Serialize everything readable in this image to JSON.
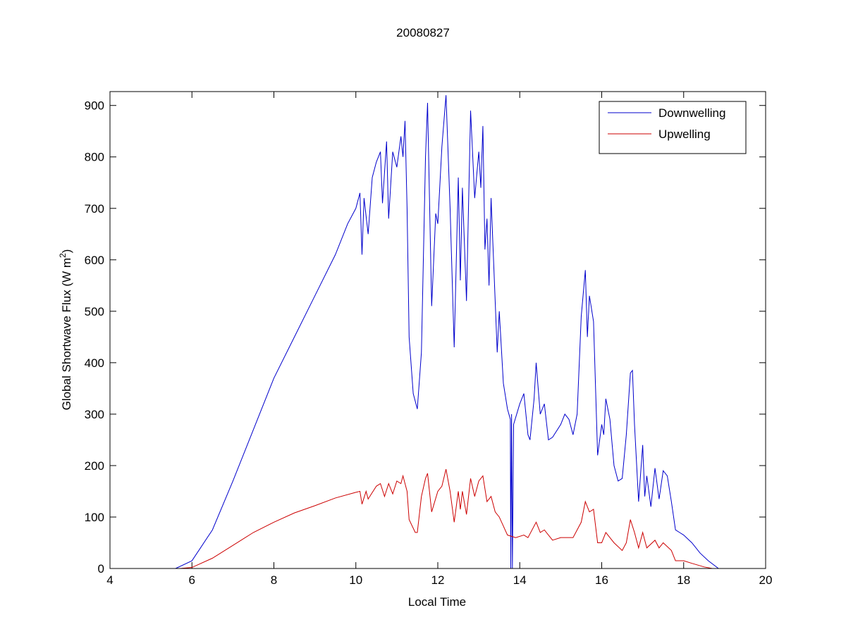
{
  "chart_data": {
    "type": "line",
    "title": "20080827",
    "xlabel": "Local Time",
    "ylabel": [
      "Global Shortwave Flux (W m",
      "2",
      ")"
    ],
    "xlim": [
      4,
      20
    ],
    "xticks": [
      4,
      6,
      8,
      10,
      12,
      14,
      16,
      18,
      20
    ],
    "ylim": [
      0,
      927
    ],
    "yticks": [
      0,
      100,
      200,
      300,
      400,
      500,
      600,
      700,
      800,
      900
    ],
    "grid": false,
    "legend": "upper right",
    "series": [
      {
        "name": "Downwelling",
        "color": "#0000cc",
        "x": [
          5.6,
          6,
          6.5,
          7,
          7.5,
          8,
          8.5,
          9,
          9.5,
          9.8,
          10,
          10.1,
          10.15,
          10.2,
          10.3,
          10.4,
          10.5,
          10.6,
          10.65,
          10.75,
          10.8,
          10.9,
          11.0,
          11.1,
          11.15,
          11.2,
          11.25,
          11.3,
          11.4,
          11.5,
          11.6,
          11.7,
          11.75,
          11.85,
          11.95,
          12.0,
          12.1,
          12.2,
          12.3,
          12.4,
          12.5,
          12.55,
          12.6,
          12.7,
          12.8,
          12.9,
          13.0,
          13.05,
          13.1,
          13.15,
          13.2,
          13.25,
          13.3,
          13.4,
          13.45,
          13.5,
          13.6,
          13.7,
          13.77,
          13.78,
          13.8,
          13.82,
          13.85,
          14.0,
          14.1,
          14.2,
          14.25,
          14.35,
          14.4,
          14.5,
          14.6,
          14.7,
          14.8,
          15.0,
          15.1,
          15.2,
          15.3,
          15.4,
          15.5,
          15.6,
          15.65,
          15.7,
          15.8,
          15.9,
          16.0,
          16.05,
          16.1,
          16.2,
          16.3,
          16.4,
          16.5,
          16.6,
          16.7,
          16.75,
          16.8,
          16.9,
          17.0,
          17.05,
          17.1,
          17.2,
          17.3,
          17.4,
          17.5,
          17.6,
          17.7,
          17.8,
          17.9,
          18.0,
          18.2,
          18.4,
          18.6,
          18.85
        ],
        "values": [
          0,
          15,
          75,
          170,
          270,
          370,
          450,
          530,
          610,
          670,
          700,
          730,
          610,
          720,
          650,
          760,
          790,
          810,
          710,
          830,
          680,
          810,
          780,
          840,
          800,
          870,
          700,
          450,
          340,
          310,
          420,
          800,
          905,
          510,
          690,
          670,
          820,
          920,
          700,
          430,
          760,
          560,
          740,
          520,
          890,
          720,
          810,
          740,
          860,
          620,
          680,
          550,
          720,
          520,
          420,
          500,
          360,
          310,
          290,
          0,
          300,
          0,
          280,
          320,
          340,
          260,
          250,
          330,
          400,
          300,
          320,
          250,
          255,
          280,
          300,
          290,
          260,
          300,
          490,
          580,
          450,
          530,
          480,
          220,
          280,
          260,
          330,
          290,
          200,
          170,
          175,
          260,
          380,
          385,
          280,
          130,
          240,
          140,
          180,
          120,
          195,
          135,
          190,
          180,
          130,
          75,
          70,
          65,
          50,
          30,
          15,
          0
        ]
      },
      {
        "name": "Upwelling",
        "color": "#cc0000",
        "x": [
          5.7,
          6,
          6.5,
          7,
          7.5,
          8,
          8.5,
          9,
          9.5,
          10,
          10.1,
          10.15,
          10.25,
          10.3,
          10.5,
          10.6,
          10.7,
          10.8,
          10.9,
          11,
          11.1,
          11.15,
          11.25,
          11.3,
          11.45,
          11.5,
          11.6,
          11.7,
          11.75,
          11.85,
          12.0,
          12.1,
          12.2,
          12.3,
          12.4,
          12.5,
          12.55,
          12.6,
          12.7,
          12.8,
          12.9,
          13.0,
          13.1,
          13.2,
          13.3,
          13.4,
          13.5,
          13.7,
          13.9,
          14.1,
          14.2,
          14.4,
          14.5,
          14.6,
          14.8,
          15,
          15.3,
          15.5,
          15.6,
          15.7,
          15.8,
          15.9,
          16,
          16.1,
          16.3,
          16.5,
          16.6,
          16.7,
          16.8,
          16.9,
          17.0,
          17.1,
          17.3,
          17.4,
          17.5,
          17.7,
          17.8,
          18,
          18.2,
          18.5,
          18.7
        ],
        "values": [
          0,
          2,
          20,
          45,
          70,
          90,
          108,
          122,
          137,
          148,
          150,
          125,
          150,
          135,
          160,
          165,
          140,
          165,
          145,
          170,
          165,
          180,
          150,
          95,
          70,
          70,
          140,
          175,
          185,
          110,
          150,
          160,
          193,
          150,
          90,
          150,
          115,
          150,
          105,
          175,
          140,
          170,
          180,
          130,
          140,
          110,
          100,
          65,
          60,
          65,
          60,
          90,
          70,
          75,
          55,
          60,
          60,
          90,
          130,
          110,
          115,
          50,
          50,
          70,
          50,
          35,
          50,
          95,
          70,
          40,
          70,
          40,
          55,
          40,
          50,
          35,
          15,
          15,
          10,
          3,
          0
        ]
      }
    ]
  }
}
